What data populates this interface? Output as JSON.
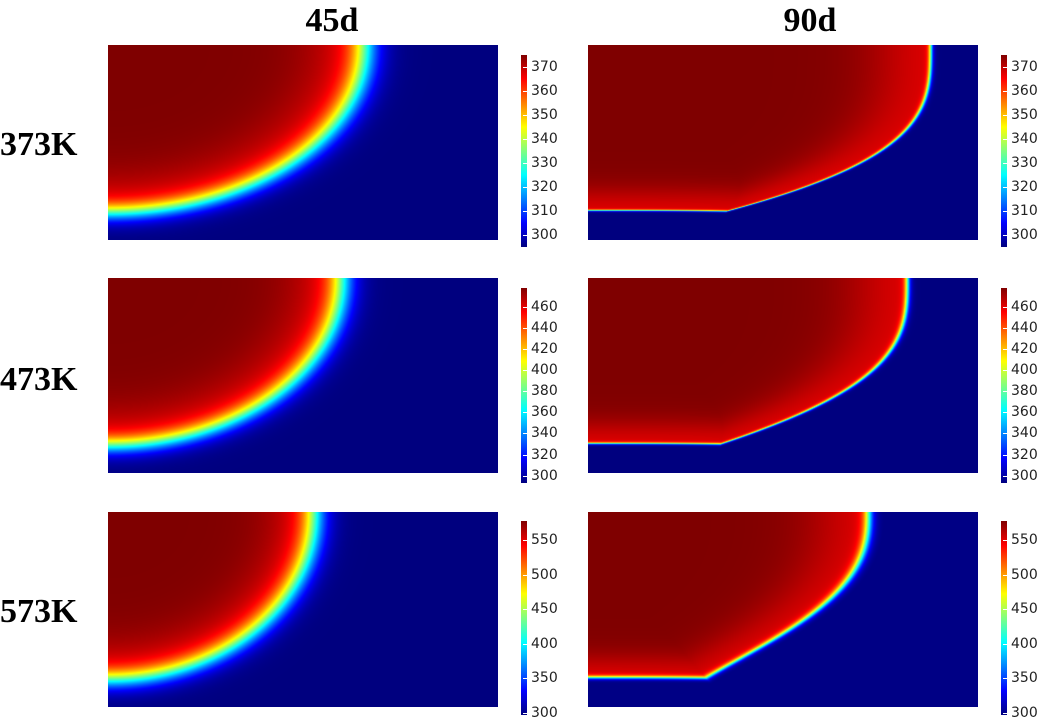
{
  "columns": [
    "45d",
    "90d"
  ],
  "rows": [
    "373K",
    "473K",
    "573K"
  ],
  "colormap": {
    "name": "jet",
    "stops": [
      "#00007f",
      "#0000ff",
      "#0080ff",
      "#00ffff",
      "#80ff80",
      "#ffff00",
      "#ff8000",
      "#ff0000",
      "#7f0000"
    ]
  },
  "panels": [
    {
      "id": "373K-45d",
      "row": "373K",
      "column": "45d",
      "colorbar": {
        "min": 295,
        "max": 375,
        "ticks": [
          "370",
          "360",
          "350",
          "340",
          "330",
          "320",
          "310",
          "300"
        ]
      }
    },
    {
      "id": "373K-90d",
      "row": "373K",
      "column": "90d",
      "colorbar": {
        "min": 295,
        "max": 375,
        "ticks": [
          "370",
          "360",
          "350",
          "340",
          "330",
          "320",
          "310",
          "300"
        ]
      }
    },
    {
      "id": "473K-45d",
      "row": "473K",
      "column": "45d",
      "colorbar": {
        "min": 293,
        "max": 478,
        "ticks": [
          "460",
          "440",
          "420",
          "400",
          "380",
          "360",
          "340",
          "320",
          "300"
        ]
      }
    },
    {
      "id": "473K-90d",
      "row": "473K",
      "column": "90d",
      "colorbar": {
        "min": 293,
        "max": 478,
        "ticks": [
          "460",
          "440",
          "420",
          "400",
          "380",
          "360",
          "340",
          "320",
          "300"
        ]
      }
    },
    {
      "id": "573K-45d",
      "row": "573K",
      "column": "45d",
      "colorbar": {
        "min": 297,
        "max": 578,
        "ticks": [
          "550",
          "500",
          "450",
          "400",
          "350",
          "300"
        ]
      }
    },
    {
      "id": "573K-90d",
      "row": "573K",
      "column": "90d",
      "colorbar": {
        "min": 297,
        "max": 578,
        "ticks": [
          "550",
          "500",
          "450",
          "400",
          "350",
          "300"
        ]
      }
    }
  ]
}
